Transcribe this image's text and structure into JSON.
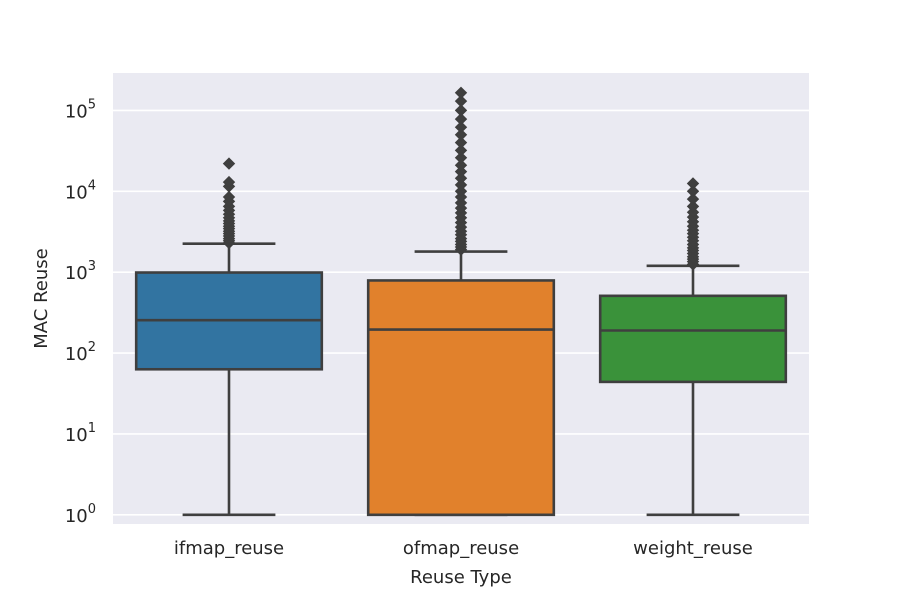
{
  "chart_data": {
    "type": "box",
    "title": "",
    "xlabel": "Reuse Type",
    "ylabel": "MAC Reuse",
    "yscale": "log",
    "ylim": [
      0.77,
      290000
    ],
    "ytick_base": "10",
    "ytick_exponents": [
      "0",
      "1",
      "2",
      "3",
      "4",
      "5"
    ],
    "grid": true,
    "background": "#eaeaf2",
    "categories": [
      "ifmap_reuse",
      "ofmap_reuse",
      "weight_reuse"
    ],
    "colors": [
      "#3274a1",
      "#e1812c",
      "#3a923a"
    ],
    "boxes": [
      {
        "category": "ifmap_reuse",
        "whisker_low": 1,
        "q1": 63,
        "median": 255,
        "q3": 990,
        "whisker_high": 2250,
        "outliers": [
          2300,
          2450,
          2600,
          2800,
          3000,
          3200,
          3450,
          3700,
          4000,
          4300,
          4700,
          5200,
          5800,
          6500,
          7500,
          8500,
          11500,
          13000,
          22000
        ]
      },
      {
        "category": "ofmap_reuse",
        "whisker_low": 1,
        "q1": 1,
        "median": 195,
        "q3": 790,
        "whisker_high": 1800,
        "outliers": [
          1900,
          2050,
          2200,
          2400,
          2600,
          2900,
          3200,
          3600,
          4100,
          4700,
          5400,
          6200,
          7200,
          8500,
          10000,
          12000,
          14500,
          17500,
          21000,
          26000,
          32000,
          40000,
          50000,
          62000,
          78000,
          100000,
          130000,
          165000
        ]
      },
      {
        "category": "weight_reuse",
        "whisker_low": 1,
        "q1": 44,
        "median": 190,
        "q3": 510,
        "whisker_high": 1200,
        "outliers": [
          1250,
          1350,
          1450,
          1550,
          1700,
          1850,
          2000,
          2200,
          2450,
          2700,
          3000,
          3300,
          3700,
          4200,
          4800,
          5500,
          6500,
          8000,
          10000,
          12500
        ]
      }
    ]
  }
}
